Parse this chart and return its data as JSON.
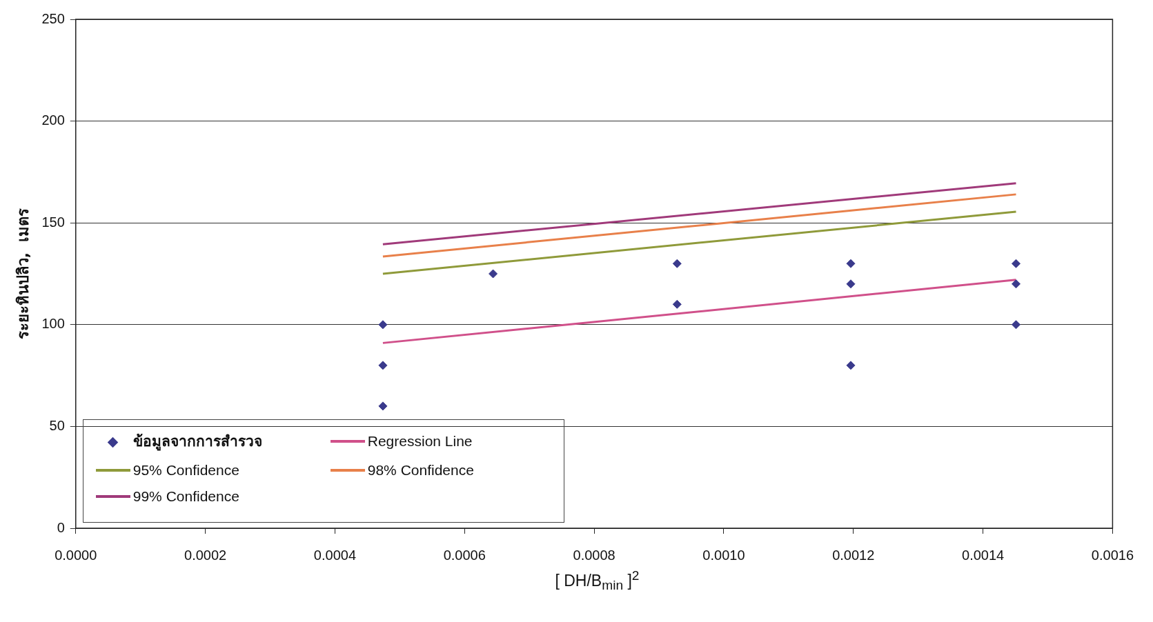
{
  "chart_data": {
    "type": "scatter",
    "xlabel": "[ DH/B$_{min}$ ]$^{2}$",
    "ylabel": "ระยะหินปลิว,  เมตร",
    "xlim": [
      0,
      0.0016
    ],
    "xticks": [
      {
        "value": 0,
        "label": "0.0000"
      },
      {
        "value": 0.0002,
        "label": "0.0002"
      },
      {
        "value": 0.0004,
        "label": "0.0004"
      },
      {
        "value": 0.0006,
        "label": "0.0006"
      },
      {
        "value": 0.0008,
        "label": "0.0008"
      },
      {
        "value": 0.001,
        "label": "0.0010"
      },
      {
        "value": 0.0012,
        "label": "0.0012"
      },
      {
        "value": 0.0014,
        "label": "0.0014"
      },
      {
        "value": 0.0016,
        "label": "0.0016"
      }
    ],
    "ylim": [
      0,
      250
    ],
    "yticks": [
      0,
      50,
      100,
      150,
      200,
      250
    ],
    "grid": "y",
    "legend": "bottom left",
    "series": [
      {
        "name": "ข้อมูลจากการสำรวจ",
        "type": "scatter",
        "marker": "diamond",
        "color": "#3a3a8c",
        "x": [
          0.000474,
          0.000474,
          0.000474,
          0.000644,
          0.000928,
          0.000928,
          0.001196,
          0.001196,
          0.001196,
          0.001451,
          0.001451,
          0.001451
        ],
        "values": [
          100,
          80,
          60,
          125,
          130,
          110,
          130,
          120,
          80,
          130,
          120,
          100
        ]
      },
      {
        "name": "Regression Line",
        "type": "line",
        "marker": "none",
        "color": "#d0508a",
        "x": [
          0.000474,
          0.001451
        ],
        "values": [
          91,
          122
        ]
      },
      {
        "name": "95% Confidence",
        "type": "line",
        "marker": "none",
        "color": "#8f9a3a",
        "x": [
          0.000474,
          0.001451
        ],
        "values": [
          125,
          155.5
        ]
      },
      {
        "name": "98% Confidence",
        "type": "line",
        "marker": "none",
        "color": "#e8804a",
        "x": [
          0.000474,
          0.001451
        ],
        "values": [
          133.5,
          164
        ]
      },
      {
        "name": "99% Confidence",
        "type": "line",
        "marker": "none",
        "color": "#a03a7a",
        "x": [
          0.000474,
          0.001451
        ],
        "values": [
          139.5,
          169.5
        ]
      }
    ]
  }
}
